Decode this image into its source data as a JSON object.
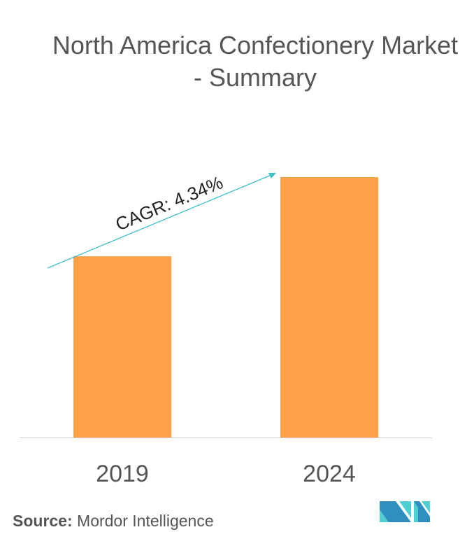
{
  "chart_data": {
    "type": "bar",
    "title": "North America Confectionery Market - Summary",
    "categories": [
      "2019",
      "2024"
    ],
    "values": [
      69.6,
      100
    ],
    "ylim": [
      0,
      100
    ],
    "xlabel": "",
    "ylabel": "",
    "grid": false,
    "bar_color": "#FFA04A",
    "annotation": {
      "text": "CAGR: 4.34%",
      "color": "#3CBFC6"
    }
  },
  "source": {
    "label": "Source:",
    "text": "Mordor Intelligence"
  },
  "logo": {
    "text": "Mordor Intelligence",
    "colors": [
      "#2E8FC0",
      "#4ECFD2"
    ]
  }
}
